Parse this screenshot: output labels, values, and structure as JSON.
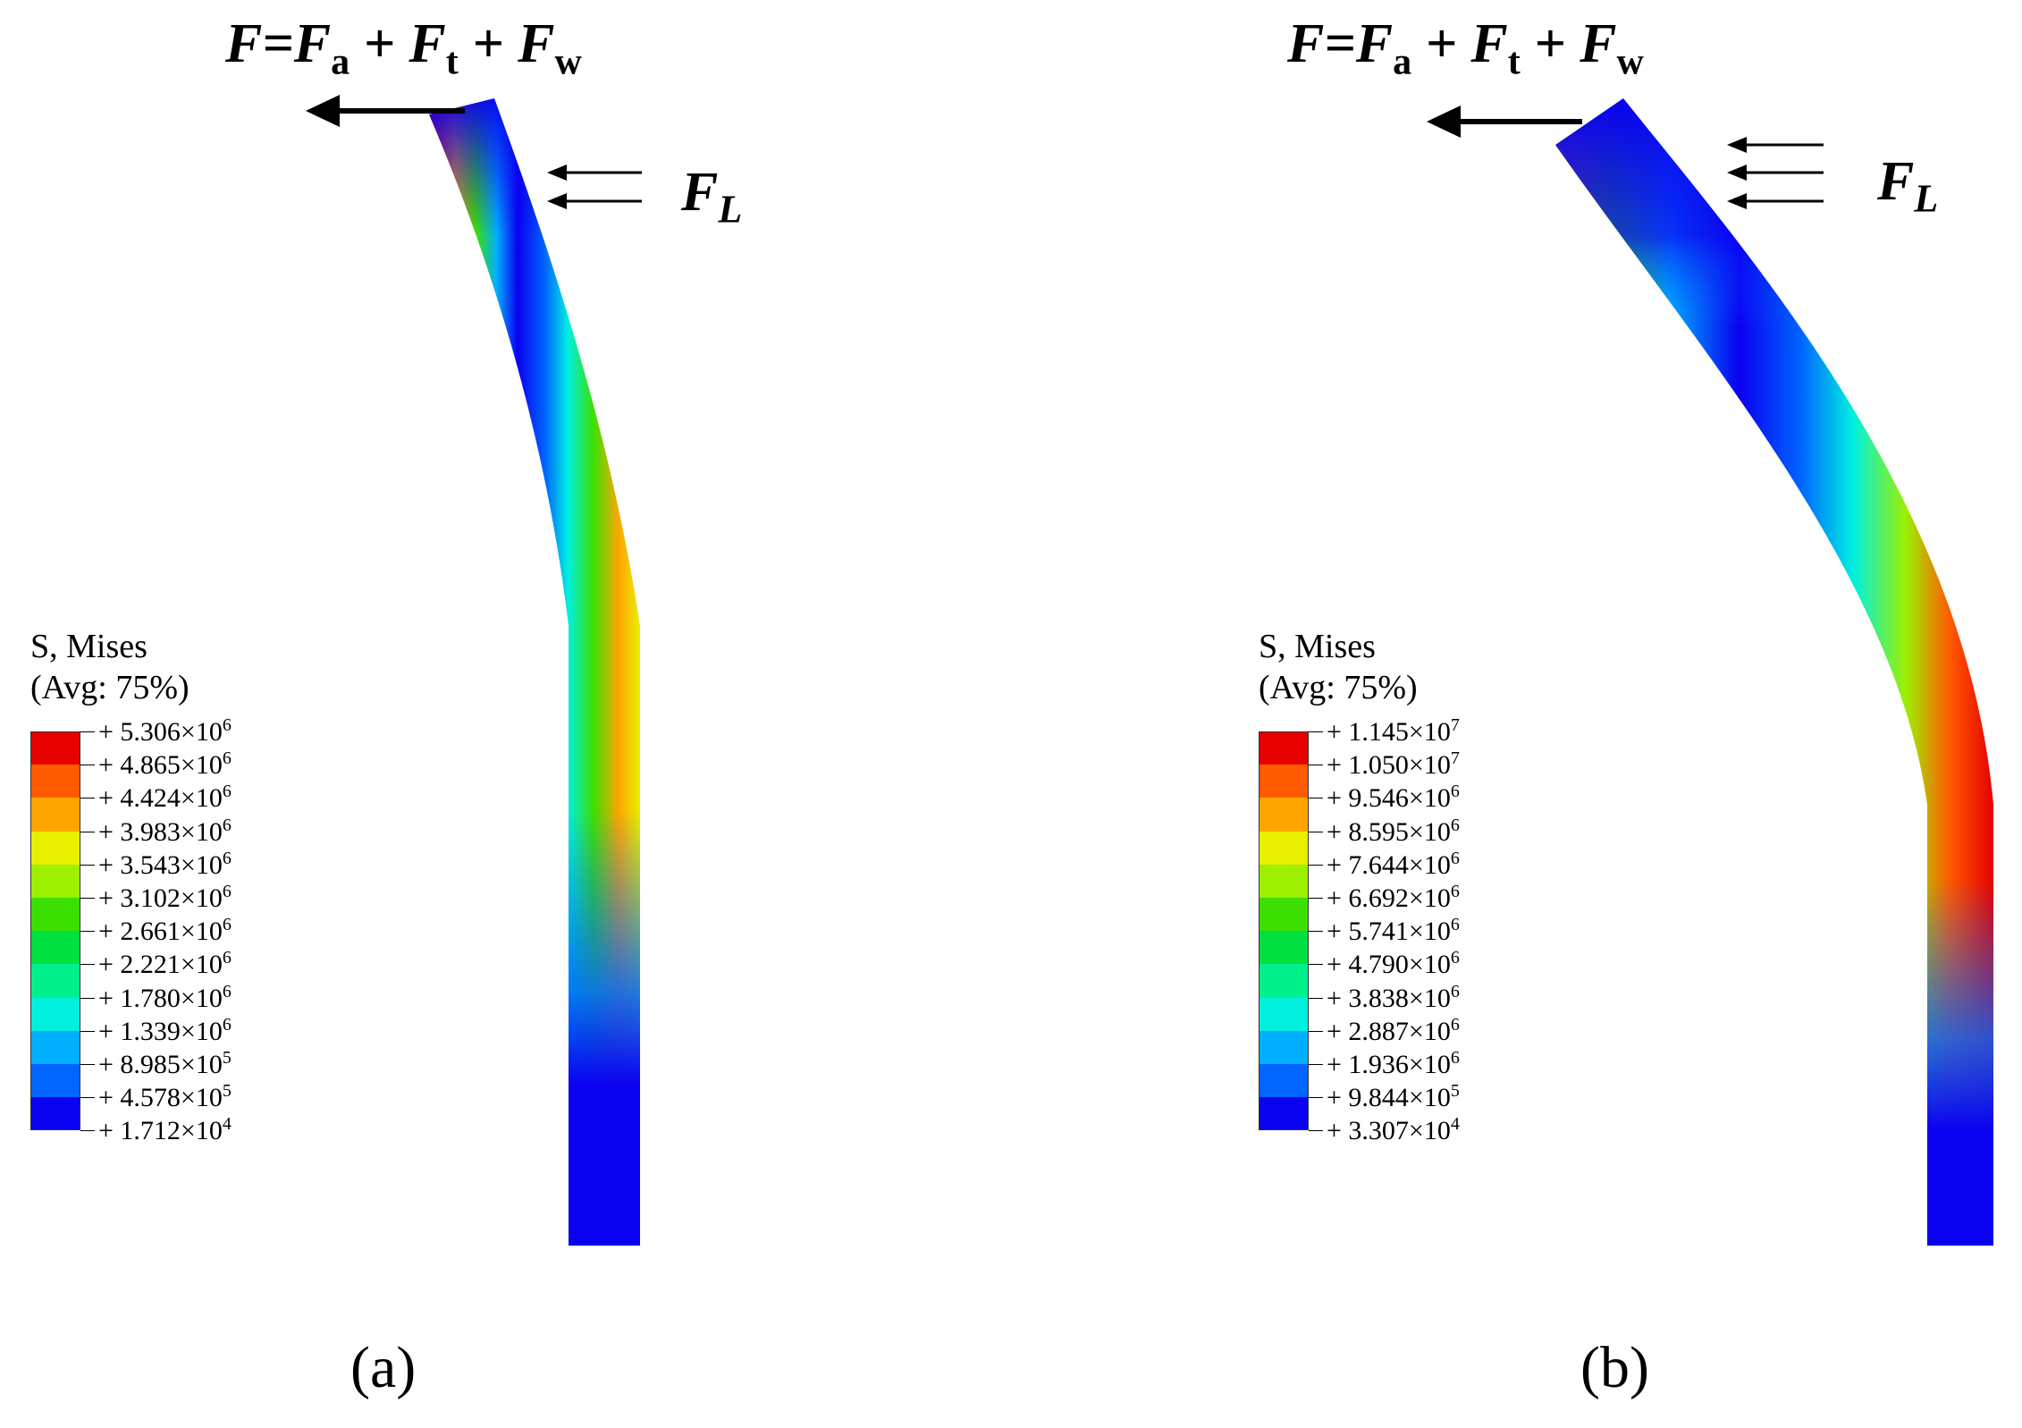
{
  "panels": [
    {
      "id": "a",
      "caption": "(a)",
      "force_label": {
        "F": "F",
        "eq": "=",
        "Fa": "F",
        "a": "a",
        "Ft": "F",
        "t": "t",
        "Fw": "F",
        "w": "w",
        "plus": "+"
      },
      "fl_label": {
        "F": "F",
        "sub": "L"
      },
      "legend_title_1": "S, Mises",
      "legend_title_2": "(Avg: 75%)",
      "legend": [
        {
          "mantissa": "5.306",
          "exp": "6"
        },
        {
          "mantissa": "4.865",
          "exp": "6"
        },
        {
          "mantissa": "4.424",
          "exp": "6"
        },
        {
          "mantissa": "3.983",
          "exp": "6"
        },
        {
          "mantissa": "3.543",
          "exp": "6"
        },
        {
          "mantissa": "3.102",
          "exp": "6"
        },
        {
          "mantissa": "2.661",
          "exp": "6"
        },
        {
          "mantissa": "2.221",
          "exp": "6"
        },
        {
          "mantissa": "1.780",
          "exp": "6"
        },
        {
          "mantissa": "1.339",
          "exp": "6"
        },
        {
          "mantissa": "8.985",
          "exp": "5"
        },
        {
          "mantissa": "4.578",
          "exp": "5"
        },
        {
          "mantissa": "1.712",
          "exp": "4"
        }
      ]
    },
    {
      "id": "b",
      "caption": "(b)",
      "force_label": {
        "F": "F",
        "eq": "=",
        "Fa": "F",
        "a": "a",
        "Ft": "F",
        "t": "t",
        "Fw": "F",
        "w": "w",
        "plus": "+"
      },
      "fl_label": {
        "F": "F",
        "sub": "L"
      },
      "legend_title_1": "S, Mises",
      "legend_title_2": "(Avg: 75%)",
      "legend": [
        {
          "mantissa": "1.145",
          "exp": "7"
        },
        {
          "mantissa": "1.050",
          "exp": "7"
        },
        {
          "mantissa": "9.546",
          "exp": "6"
        },
        {
          "mantissa": "8.595",
          "exp": "6"
        },
        {
          "mantissa": "7.644",
          "exp": "6"
        },
        {
          "mantissa": "6.692",
          "exp": "6"
        },
        {
          "mantissa": "5.741",
          "exp": "6"
        },
        {
          "mantissa": "4.790",
          "exp": "6"
        },
        {
          "mantissa": "3.838",
          "exp": "6"
        },
        {
          "mantissa": "2.887",
          "exp": "6"
        },
        {
          "mantissa": "1.936",
          "exp": "6"
        },
        {
          "mantissa": "9.844",
          "exp": "5"
        },
        {
          "mantissa": "3.307",
          "exp": "4"
        }
      ]
    }
  ],
  "colormap": [
    "#e60000",
    "#ff5a00",
    "#ffa500",
    "#e8f000",
    "#9cf000",
    "#3ce000",
    "#00e040",
    "#00f08c",
    "#00f0e0",
    "#00b0ff",
    "#0064ff",
    "#0a00f0"
  ],
  "legend_prefix": "+ ",
  "legend_times": "×10"
}
